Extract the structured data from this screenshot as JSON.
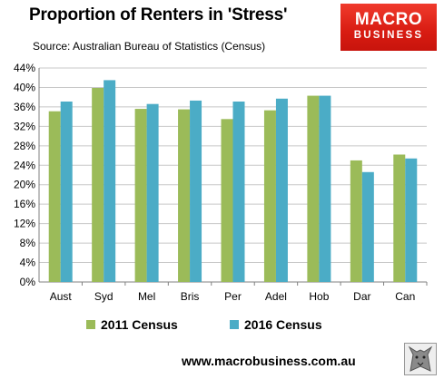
{
  "header": {
    "title": "Proportion of Renters in 'Stress'",
    "source": "Source: Australian Bureau of Statistics (Census)"
  },
  "logo": {
    "line1": "MACRO",
    "line2": "BUSINESS",
    "color": "#e0261b"
  },
  "footer": {
    "url": "www.macrobusiness.com.au",
    "badge_icon": "wolf-icon"
  },
  "chart_data": {
    "type": "bar",
    "title": "Proportion of Renters in 'Stress'",
    "categories": [
      "Aust",
      "Syd",
      "Mel",
      "Bris",
      "Per",
      "Adel",
      "Hob",
      "Dar",
      "Can"
    ],
    "series": [
      {
        "name": "2011 Census",
        "color": "#9bbb59",
        "values": [
          35.1,
          39.9,
          35.6,
          35.5,
          33.5,
          35.3,
          38.3,
          25.0,
          26.2
        ]
      },
      {
        "name": "2016 Census",
        "color": "#4bacc6",
        "values": [
          37.1,
          41.5,
          36.6,
          37.3,
          37.1,
          37.7,
          38.3,
          22.6,
          25.4
        ]
      }
    ],
    "ylim": [
      0,
      44
    ],
    "yticks": [
      0,
      4,
      8,
      12,
      16,
      20,
      24,
      28,
      32,
      36,
      40,
      44
    ],
    "ytick_labels": [
      "0%",
      "4%",
      "8%",
      "12%",
      "16%",
      "20%",
      "24%",
      "28%",
      "32%",
      "36%",
      "40%",
      "44%"
    ],
    "grid": true,
    "legend": "bottom"
  }
}
